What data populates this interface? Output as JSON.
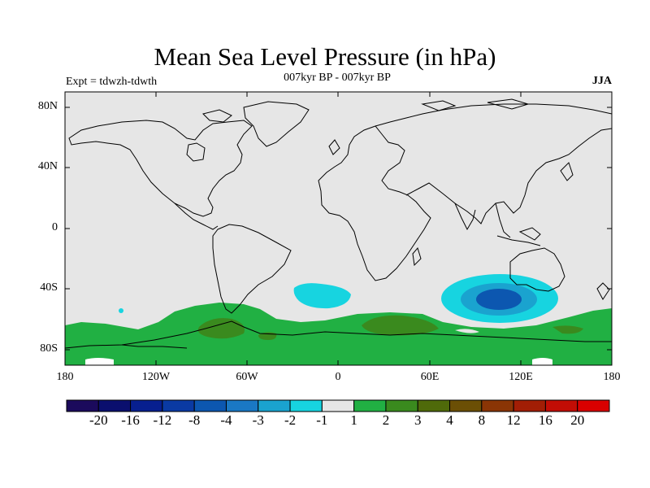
{
  "title": "Mean Sea Level Pressure (in hPa)",
  "subtitle": "007kyr BP - 007kyr BP",
  "experiment": "Expt = tdwzh-tdwth",
  "season": "JJA",
  "map": {
    "projection": "cylindrical-equidistant",
    "lon_range": [
      -180,
      180
    ],
    "lat_range": [
      -90,
      90
    ],
    "land_fill": "#e6e6e6",
    "coastline_color": "#000000"
  },
  "axes": {
    "lat_labels": [
      "80N",
      "40N",
      "0",
      "40S",
      "80S"
    ],
    "lat_values": [
      80,
      40,
      0,
      -40,
      -80
    ],
    "lon_labels": [
      "180",
      "120W",
      "60W",
      "0",
      "60E",
      "120E",
      "180"
    ],
    "lon_values": [
      -180,
      -120,
      -60,
      0,
      60,
      120,
      180
    ]
  },
  "colorbar": {
    "labels": [
      "-20",
      "-16",
      "-12",
      "-8",
      "-4",
      "-3",
      "-2",
      "-1",
      "1",
      "2",
      "3",
      "4",
      "8",
      "12",
      "16",
      "20"
    ],
    "colors": [
      "#1b0a5c",
      "#0a0f6e",
      "#071f8f",
      "#0a3aa3",
      "#0c57b0",
      "#1a78c4",
      "#1aa3cf",
      "#17d4e0",
      "#e6e6e6",
      "#21b043",
      "#3a8a1e",
      "#4f6a0a",
      "#6b4f05",
      "#8a3505",
      "#a21e05",
      "#c20d05",
      "#d90000"
    ]
  },
  "anomaly_regions": [
    {
      "label": "negative anomaly south of Australia",
      "colors": [
        "#17d4e0",
        "#1aa3cf",
        "#0c57b0"
      ]
    },
    {
      "label": "negative anomaly South Atlantic",
      "colors": [
        "#17d4e0"
      ]
    },
    {
      "label": "positive anomaly Southern Ocean",
      "colors": [
        "#21b043",
        "#3a8a1e",
        "#4f6a0a"
      ]
    }
  ]
}
